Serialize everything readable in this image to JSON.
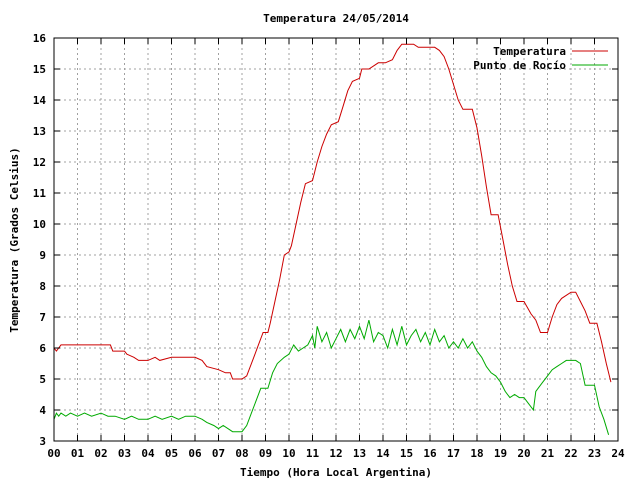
{
  "chart_data": {
    "type": "line",
    "title": "Temperatura 24/05/2014",
    "xlabel": "Tiempo (Hora Local Argentina)",
    "ylabel": "Temperatura (Grados Celsius)",
    "xlim": [
      0,
      24
    ],
    "ylim": [
      3,
      16
    ],
    "x_ticks": [
      "00",
      "01",
      "02",
      "03",
      "04",
      "05",
      "06",
      "07",
      "08",
      "09",
      "10",
      "11",
      "12",
      "13",
      "14",
      "15",
      "16",
      "17",
      "18",
      "19",
      "20",
      "21",
      "22",
      "23",
      "24"
    ],
    "y_ticks": [
      "3",
      "4",
      "5",
      "6",
      "7",
      "8",
      "9",
      "10",
      "11",
      "12",
      "13",
      "14",
      "15",
      "16"
    ],
    "grid": true,
    "legend_position": "top-right",
    "series": [
      {
        "name": "Temperatura",
        "color": "#cc0000",
        "points": [
          [
            0.0,
            6.0
          ],
          [
            0.1,
            5.9
          ],
          [
            0.2,
            6.0
          ],
          [
            0.3,
            6.1
          ],
          [
            1.0,
            6.1
          ],
          [
            1.5,
            6.1
          ],
          [
            2.0,
            6.1
          ],
          [
            2.4,
            6.1
          ],
          [
            2.5,
            5.9
          ],
          [
            3.0,
            5.9
          ],
          [
            3.1,
            5.8
          ],
          [
            3.4,
            5.7
          ],
          [
            3.6,
            5.6
          ],
          [
            4.0,
            5.6
          ],
          [
            4.3,
            5.7
          ],
          [
            4.5,
            5.6
          ],
          [
            5.0,
            5.7
          ],
          [
            5.5,
            5.7
          ],
          [
            6.0,
            5.7
          ],
          [
            6.3,
            5.6
          ],
          [
            6.5,
            5.4
          ],
          [
            7.0,
            5.3
          ],
          [
            7.3,
            5.2
          ],
          [
            7.5,
            5.2
          ],
          [
            7.6,
            5.0
          ],
          [
            8.0,
            5.0
          ],
          [
            8.2,
            5.1
          ],
          [
            8.5,
            5.7
          ],
          [
            8.7,
            6.1
          ],
          [
            8.9,
            6.5
          ],
          [
            9.1,
            6.5
          ],
          [
            9.2,
            6.8
          ],
          [
            9.4,
            7.5
          ],
          [
            9.6,
            8.2
          ],
          [
            9.8,
            9.0
          ],
          [
            10.0,
            9.1
          ],
          [
            10.1,
            9.3
          ],
          [
            10.3,
            10.0
          ],
          [
            10.5,
            10.7
          ],
          [
            10.7,
            11.3
          ],
          [
            11.0,
            11.4
          ],
          [
            11.2,
            12.0
          ],
          [
            11.4,
            12.5
          ],
          [
            11.6,
            12.9
          ],
          [
            11.8,
            13.2
          ],
          [
            12.1,
            13.3
          ],
          [
            12.3,
            13.8
          ],
          [
            12.5,
            14.3
          ],
          [
            12.7,
            14.6
          ],
          [
            13.0,
            14.7
          ],
          [
            13.1,
            15.0
          ],
          [
            13.4,
            15.0
          ],
          [
            13.6,
            15.1
          ],
          [
            13.8,
            15.2
          ],
          [
            14.1,
            15.2
          ],
          [
            14.4,
            15.3
          ],
          [
            14.6,
            15.6
          ],
          [
            14.8,
            15.8
          ],
          [
            15.0,
            15.8
          ],
          [
            15.3,
            15.8
          ],
          [
            15.5,
            15.7
          ],
          [
            15.8,
            15.7
          ],
          [
            16.2,
            15.7
          ],
          [
            16.4,
            15.6
          ],
          [
            16.6,
            15.4
          ],
          [
            16.8,
            15.0
          ],
          [
            17.0,
            14.5
          ],
          [
            17.2,
            14.0
          ],
          [
            17.4,
            13.7
          ],
          [
            17.8,
            13.7
          ],
          [
            18.0,
            13.1
          ],
          [
            18.2,
            12.2
          ],
          [
            18.4,
            11.2
          ],
          [
            18.6,
            10.3
          ],
          [
            18.9,
            10.3
          ],
          [
            19.1,
            9.5
          ],
          [
            19.3,
            8.7
          ],
          [
            19.5,
            8.0
          ],
          [
            19.7,
            7.5
          ],
          [
            20.0,
            7.5
          ],
          [
            20.3,
            7.1
          ],
          [
            20.5,
            6.9
          ],
          [
            20.7,
            6.5
          ],
          [
            21.0,
            6.5
          ],
          [
            21.2,
            7.0
          ],
          [
            21.4,
            7.4
          ],
          [
            21.6,
            7.6
          ],
          [
            21.8,
            7.7
          ],
          [
            22.0,
            7.8
          ],
          [
            22.2,
            7.8
          ],
          [
            22.4,
            7.5
          ],
          [
            22.6,
            7.2
          ],
          [
            22.8,
            6.8
          ],
          [
            23.1,
            6.8
          ],
          [
            23.3,
            6.2
          ],
          [
            23.5,
            5.5
          ],
          [
            23.7,
            4.9
          ]
        ]
      },
      {
        "name": "Punto de Rocío",
        "color": "#00aa00",
        "points": [
          [
            0.0,
            3.7
          ],
          [
            0.1,
            3.9
          ],
          [
            0.2,
            3.8
          ],
          [
            0.3,
            3.9
          ],
          [
            0.5,
            3.8
          ],
          [
            0.7,
            3.9
          ],
          [
            1.0,
            3.8
          ],
          [
            1.3,
            3.9
          ],
          [
            1.6,
            3.8
          ],
          [
            2.0,
            3.9
          ],
          [
            2.3,
            3.8
          ],
          [
            2.6,
            3.8
          ],
          [
            3.0,
            3.7
          ],
          [
            3.3,
            3.8
          ],
          [
            3.6,
            3.7
          ],
          [
            4.0,
            3.7
          ],
          [
            4.3,
            3.8
          ],
          [
            4.6,
            3.7
          ],
          [
            5.0,
            3.8
          ],
          [
            5.3,
            3.7
          ],
          [
            5.6,
            3.8
          ],
          [
            6.0,
            3.8
          ],
          [
            6.3,
            3.7
          ],
          [
            6.5,
            3.6
          ],
          [
            6.8,
            3.5
          ],
          [
            7.0,
            3.4
          ],
          [
            7.2,
            3.5
          ],
          [
            7.4,
            3.4
          ],
          [
            7.6,
            3.3
          ],
          [
            8.0,
            3.3
          ],
          [
            8.2,
            3.5
          ],
          [
            8.4,
            3.9
          ],
          [
            8.6,
            4.3
          ],
          [
            8.8,
            4.7
          ],
          [
            9.1,
            4.7
          ],
          [
            9.3,
            5.2
          ],
          [
            9.5,
            5.5
          ],
          [
            9.8,
            5.7
          ],
          [
            10.0,
            5.8
          ],
          [
            10.2,
            6.1
          ],
          [
            10.4,
            5.9
          ],
          [
            10.6,
            6.0
          ],
          [
            10.8,
            6.1
          ],
          [
            11.0,
            6.4
          ],
          [
            11.1,
            6.0
          ],
          [
            11.2,
            6.7
          ],
          [
            11.4,
            6.2
          ],
          [
            11.6,
            6.5
          ],
          [
            11.8,
            6.0
          ],
          [
            12.0,
            6.3
          ],
          [
            12.2,
            6.6
          ],
          [
            12.4,
            6.2
          ],
          [
            12.6,
            6.6
          ],
          [
            12.8,
            6.3
          ],
          [
            13.0,
            6.7
          ],
          [
            13.2,
            6.3
          ],
          [
            13.4,
            6.9
          ],
          [
            13.6,
            6.2
          ],
          [
            13.8,
            6.5
          ],
          [
            14.0,
            6.4
          ],
          [
            14.2,
            6.0
          ],
          [
            14.4,
            6.6
          ],
          [
            14.6,
            6.1
          ],
          [
            14.8,
            6.7
          ],
          [
            15.0,
            6.1
          ],
          [
            15.2,
            6.4
          ],
          [
            15.4,
            6.6
          ],
          [
            15.6,
            6.2
          ],
          [
            15.8,
            6.5
          ],
          [
            16.0,
            6.1
          ],
          [
            16.2,
            6.6
          ],
          [
            16.4,
            6.2
          ],
          [
            16.6,
            6.4
          ],
          [
            16.8,
            6.0
          ],
          [
            17.0,
            6.2
          ],
          [
            17.2,
            6.0
          ],
          [
            17.4,
            6.3
          ],
          [
            17.6,
            6.0
          ],
          [
            17.8,
            6.2
          ],
          [
            18.0,
            5.9
          ],
          [
            18.2,
            5.7
          ],
          [
            18.4,
            5.4
          ],
          [
            18.6,
            5.2
          ],
          [
            18.8,
            5.1
          ],
          [
            19.0,
            4.9
          ],
          [
            19.2,
            4.6
          ],
          [
            19.4,
            4.4
          ],
          [
            19.6,
            4.5
          ],
          [
            19.8,
            4.4
          ],
          [
            20.0,
            4.4
          ],
          [
            20.2,
            4.2
          ],
          [
            20.4,
            4.0
          ],
          [
            20.5,
            4.6
          ],
          [
            20.6,
            4.7
          ],
          [
            20.8,
            4.9
          ],
          [
            21.0,
            5.1
          ],
          [
            21.2,
            5.3
          ],
          [
            21.4,
            5.4
          ],
          [
            21.6,
            5.5
          ],
          [
            21.8,
            5.6
          ],
          [
            22.0,
            5.6
          ],
          [
            22.2,
            5.6
          ],
          [
            22.4,
            5.5
          ],
          [
            22.6,
            4.8
          ],
          [
            23.0,
            4.8
          ],
          [
            23.2,
            4.1
          ],
          [
            23.4,
            3.7
          ],
          [
            23.6,
            3.2
          ]
        ]
      }
    ]
  }
}
